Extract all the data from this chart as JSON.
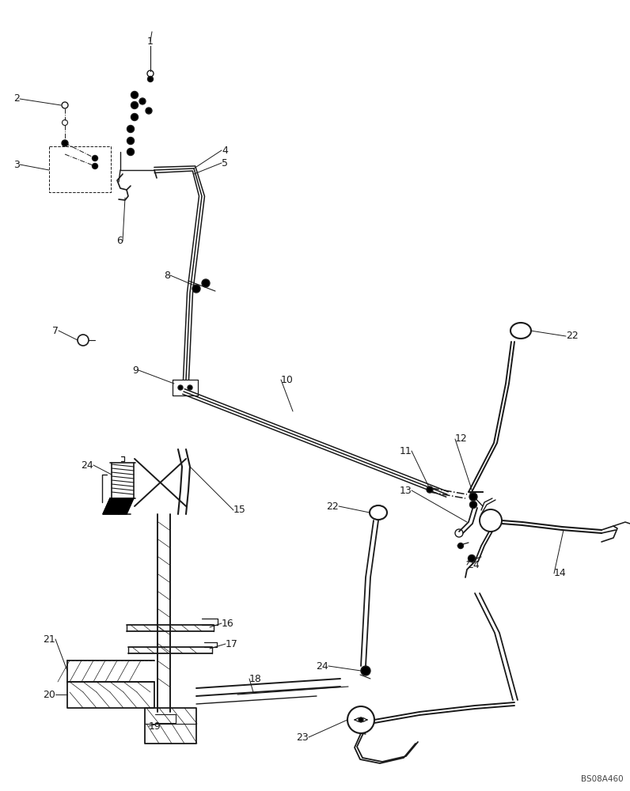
{
  "bg_color": "#ffffff",
  "lc": "#1a1a1a",
  "watermark": "BS08A460",
  "fig_w": 7.96,
  "fig_h": 10.0,
  "dpi": 100
}
